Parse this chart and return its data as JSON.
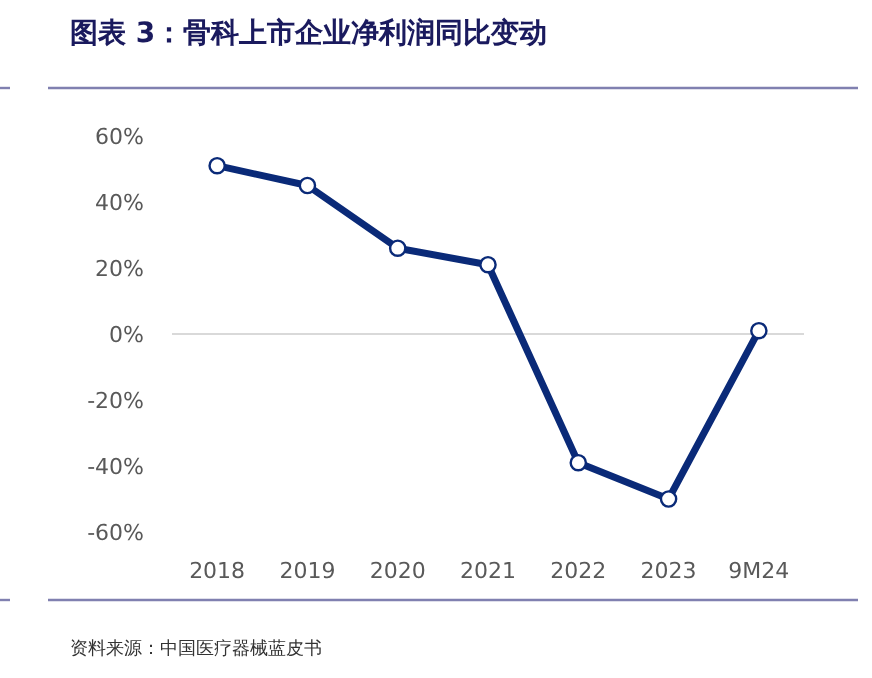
{
  "chart_data": {
    "type": "line",
    "title": "图表 3：骨科上市企业净利润同比变动",
    "categories": [
      "2018",
      "2019",
      "2020",
      "2021",
      "2022",
      "2023",
      "9M24"
    ],
    "series": [
      {
        "color": "#0a2a78",
        "values": [
          51,
          45,
          26,
          21,
          -39,
          -50,
          1
        ]
      }
    ],
    "ylim": [
      -60,
      60
    ],
    "yticks": [
      {
        "value": -60,
        "label": "-60%"
      },
      {
        "value": -40,
        "label": "-40%"
      },
      {
        "value": -20,
        "label": "-20%"
      },
      {
        "value": 0,
        "label": "0%"
      },
      {
        "value": 20,
        "label": "20%"
      },
      {
        "value": 40,
        "label": "40%"
      },
      {
        "value": 60,
        "label": "60%"
      }
    ],
    "marker": "circle",
    "line_style": "solid",
    "annotations": [
      "资料来源：中国医疗器械蓝皮书"
    ]
  }
}
